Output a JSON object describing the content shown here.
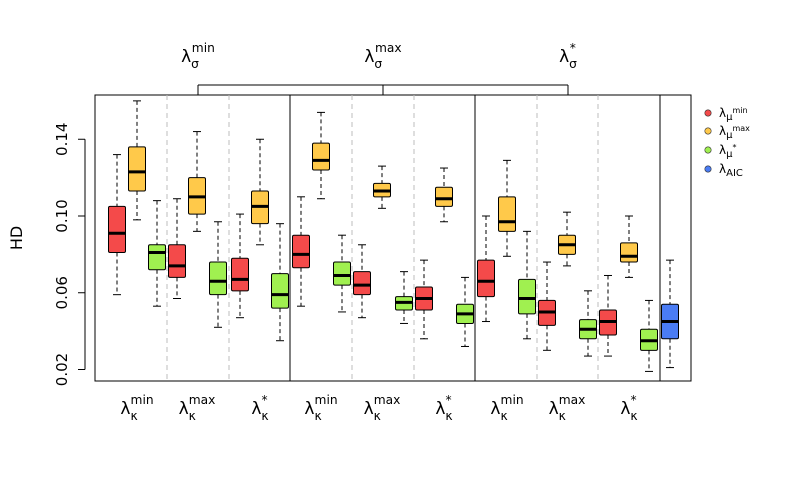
{
  "chart_data": {
    "type": "boxplot",
    "ylabel": "HD",
    "ylim": [
      0.012,
      0.165
    ],
    "yticks": [
      0.02,
      0.06,
      0.1,
      0.14
    ],
    "ytick_labels": [
      "0.02",
      "0.06",
      "0.10",
      "0.14"
    ],
    "colors": {
      "lambda_mu_min": "#f44a4a",
      "lambda_mu_max": "#ffc94a",
      "lambda_mu_star": "#a0f050",
      "lambda_AIC": "#4a7cf4"
    },
    "top_groups": [
      {
        "base": "λ",
        "sub": "σ",
        "sup": "min"
      },
      {
        "base": "λ",
        "sub": "σ",
        "sup": "max"
      },
      {
        "base": "λ",
        "sub": "σ",
        "sup": "*"
      }
    ],
    "bottom_labels": [
      {
        "base": "λ",
        "sub": "κ",
        "sup": "min"
      },
      {
        "base": "λ",
        "sub": "κ",
        "sup": "max"
      },
      {
        "base": "λ",
        "sub": "κ",
        "sup": "*"
      },
      {
        "base": "λ",
        "sub": "κ",
        "sup": "min"
      },
      {
        "base": "λ",
        "sub": "κ",
        "sup": "max"
      },
      {
        "base": "λ",
        "sub": "κ",
        "sup": "*"
      },
      {
        "base": "λ",
        "sub": "κ",
        "sup": "min"
      },
      {
        "base": "λ",
        "sub": "κ",
        "sup": "max"
      },
      {
        "base": "λ",
        "sub": "κ",
        "sup": "*"
      }
    ],
    "legend": [
      {
        "key": "lambda_mu_min",
        "base": "λ",
        "sub": "μ",
        "subsup": "min"
      },
      {
        "key": "lambda_mu_max",
        "base": "λ",
        "sub": "μ",
        "subsup": "max"
      },
      {
        "key": "lambda_mu_star",
        "base": "λ",
        "sub": "μ",
        "subsup": "*"
      },
      {
        "key": "lambda_AIC",
        "base": "λ",
        "sub": "AIC",
        "subsup": ""
      }
    ],
    "boxes": [
      {
        "sigma": "min",
        "kappa": "min",
        "mu": "lambda_mu_min",
        "min": 0.059,
        "q1": 0.081,
        "median": 0.091,
        "q3": 0.105,
        "max": 0.132
      },
      {
        "sigma": "min",
        "kappa": "min",
        "mu": "lambda_mu_max",
        "min": 0.098,
        "q1": 0.113,
        "median": 0.123,
        "q3": 0.136,
        "max": 0.16
      },
      {
        "sigma": "min",
        "kappa": "min",
        "mu": "lambda_mu_star",
        "min": 0.053,
        "q1": 0.072,
        "median": 0.081,
        "q3": 0.085,
        "max": 0.108
      },
      {
        "sigma": "min",
        "kappa": "max",
        "mu": "lambda_mu_min",
        "min": 0.057,
        "q1": 0.068,
        "median": 0.074,
        "q3": 0.085,
        "max": 0.109
      },
      {
        "sigma": "min",
        "kappa": "max",
        "mu": "lambda_mu_max",
        "min": 0.092,
        "q1": 0.101,
        "median": 0.11,
        "q3": 0.12,
        "max": 0.144
      },
      {
        "sigma": "min",
        "kappa": "max",
        "mu": "lambda_mu_star",
        "min": 0.042,
        "q1": 0.059,
        "median": 0.066,
        "q3": 0.076,
        "max": 0.097
      },
      {
        "sigma": "min",
        "kappa": "star",
        "mu": "lambda_mu_min",
        "min": 0.047,
        "q1": 0.061,
        "median": 0.067,
        "q3": 0.078,
        "max": 0.101
      },
      {
        "sigma": "min",
        "kappa": "star",
        "mu": "lambda_mu_max",
        "min": 0.085,
        "q1": 0.096,
        "median": 0.105,
        "q3": 0.113,
        "max": 0.14
      },
      {
        "sigma": "min",
        "kappa": "star",
        "mu": "lambda_mu_star",
        "min": 0.035,
        "q1": 0.052,
        "median": 0.059,
        "q3": 0.07,
        "max": 0.096
      },
      {
        "sigma": "max",
        "kappa": "min",
        "mu": "lambda_mu_min",
        "min": 0.053,
        "q1": 0.073,
        "median": 0.08,
        "q3": 0.09,
        "max": 0.11
      },
      {
        "sigma": "max",
        "kappa": "min",
        "mu": "lambda_mu_max",
        "min": 0.109,
        "q1": 0.124,
        "median": 0.129,
        "q3": 0.138,
        "max": 0.154
      },
      {
        "sigma": "max",
        "kappa": "min",
        "mu": "lambda_mu_star",
        "min": 0.05,
        "q1": 0.064,
        "median": 0.069,
        "q3": 0.076,
        "max": 0.09
      },
      {
        "sigma": "max",
        "kappa": "max",
        "mu": "lambda_mu_min",
        "min": 0.047,
        "q1": 0.059,
        "median": 0.064,
        "q3": 0.071,
        "max": 0.085
      },
      {
        "sigma": "max",
        "kappa": "max",
        "mu": "lambda_mu_max",
        "min": 0.104,
        "q1": 0.11,
        "median": 0.113,
        "q3": 0.117,
        "max": 0.126
      },
      {
        "sigma": "max",
        "kappa": "max",
        "mu": "lambda_mu_star",
        "min": 0.044,
        "q1": 0.051,
        "median": 0.055,
        "q3": 0.058,
        "max": 0.071
      },
      {
        "sigma": "max",
        "kappa": "star",
        "mu": "lambda_mu_min",
        "min": 0.036,
        "q1": 0.051,
        "median": 0.057,
        "q3": 0.063,
        "max": 0.077
      },
      {
        "sigma": "max",
        "kappa": "star",
        "mu": "lambda_mu_max",
        "min": 0.097,
        "q1": 0.105,
        "median": 0.109,
        "q3": 0.115,
        "max": 0.125
      },
      {
        "sigma": "max",
        "kappa": "star",
        "mu": "lambda_mu_star",
        "min": 0.032,
        "q1": 0.044,
        "median": 0.049,
        "q3": 0.054,
        "max": 0.068
      },
      {
        "sigma": "star",
        "kappa": "min",
        "mu": "lambda_mu_min",
        "min": 0.045,
        "q1": 0.058,
        "median": 0.066,
        "q3": 0.077,
        "max": 0.1
      },
      {
        "sigma": "star",
        "kappa": "min",
        "mu": "lambda_mu_max",
        "min": 0.079,
        "q1": 0.092,
        "median": 0.097,
        "q3": 0.11,
        "max": 0.129
      },
      {
        "sigma": "star",
        "kappa": "min",
        "mu": "lambda_mu_star",
        "min": 0.036,
        "q1": 0.049,
        "median": 0.057,
        "q3": 0.067,
        "max": 0.092
      },
      {
        "sigma": "star",
        "kappa": "max",
        "mu": "lambda_mu_min",
        "min": 0.03,
        "q1": 0.043,
        "median": 0.05,
        "q3": 0.056,
        "max": 0.076
      },
      {
        "sigma": "star",
        "kappa": "max",
        "mu": "lambda_mu_max",
        "min": 0.074,
        "q1": 0.08,
        "median": 0.085,
        "q3": 0.09,
        "max": 0.102
      },
      {
        "sigma": "star",
        "kappa": "max",
        "mu": "lambda_mu_star",
        "min": 0.027,
        "q1": 0.036,
        "median": 0.041,
        "q3": 0.046,
        "max": 0.061
      },
      {
        "sigma": "star",
        "kappa": "star",
        "mu": "lambda_mu_min",
        "min": 0.027,
        "q1": 0.038,
        "median": 0.045,
        "q3": 0.051,
        "max": 0.069
      },
      {
        "sigma": "star",
        "kappa": "star",
        "mu": "lambda_mu_max",
        "min": 0.068,
        "q1": 0.076,
        "median": 0.079,
        "q3": 0.086,
        "max": 0.1
      },
      {
        "sigma": "star",
        "kappa": "star",
        "mu": "lambda_mu_star",
        "min": 0.019,
        "q1": 0.03,
        "median": 0.035,
        "q3": 0.041,
        "max": 0.056
      },
      {
        "sigma": "AIC",
        "kappa": "AIC",
        "mu": "lambda_AIC",
        "min": 0.021,
        "q1": 0.036,
        "median": 0.045,
        "q3": 0.054,
        "max": 0.077
      }
    ]
  }
}
